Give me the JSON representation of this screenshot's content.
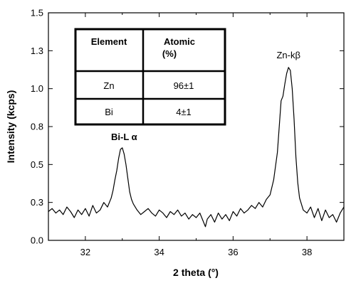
{
  "chart_data": {
    "type": "line",
    "xlabel": "2 theta (°)",
    "ylabel": "Intensity (kcps)",
    "xlim": [
      31,
      39
    ],
    "ylim": [
      0.0,
      1.5
    ],
    "x_ticks": [
      "32",
      "34",
      "36",
      "38"
    ],
    "y_ticks": [
      "0.0",
      "0.3",
      "0.5",
      "0.8",
      "1.0",
      "1.3",
      "1.5"
    ],
    "grid": false,
    "series": [
      {
        "color": "#000000",
        "x": [
          31.0,
          31.1,
          31.2,
          31.3,
          31.4,
          31.5,
          31.6,
          31.7,
          31.8,
          31.9,
          32.0,
          32.1,
          32.2,
          32.3,
          32.4,
          32.5,
          32.6,
          32.7,
          32.75,
          32.8,
          32.85,
          32.9,
          32.95,
          33.0,
          33.05,
          33.1,
          33.15,
          33.2,
          33.25,
          33.3,
          33.4,
          33.5,
          33.6,
          33.7,
          33.8,
          33.9,
          34.0,
          34.1,
          34.2,
          34.3,
          34.4,
          34.5,
          34.6,
          34.7,
          34.8,
          34.9,
          35.0,
          35.1,
          35.2,
          35.25,
          35.3,
          35.4,
          35.5,
          35.6,
          35.7,
          35.8,
          35.9,
          36.0,
          36.1,
          36.2,
          36.3,
          36.4,
          36.5,
          36.6,
          36.7,
          36.8,
          36.9,
          37.0,
          37.1,
          37.2,
          37.25,
          37.3,
          37.35,
          37.4,
          37.45,
          37.5,
          37.55,
          37.6,
          37.65,
          37.7,
          37.75,
          37.8,
          37.9,
          38.0,
          38.1,
          38.2,
          38.3,
          38.4,
          38.5,
          38.6,
          38.7,
          38.8,
          38.9,
          39.0
        ],
        "y": [
          0.19,
          0.21,
          0.18,
          0.2,
          0.17,
          0.22,
          0.19,
          0.15,
          0.2,
          0.17,
          0.21,
          0.16,
          0.23,
          0.18,
          0.2,
          0.25,
          0.22,
          0.28,
          0.33,
          0.4,
          0.46,
          0.54,
          0.6,
          0.61,
          0.57,
          0.5,
          0.41,
          0.32,
          0.27,
          0.24,
          0.2,
          0.17,
          0.19,
          0.21,
          0.18,
          0.16,
          0.2,
          0.18,
          0.15,
          0.19,
          0.17,
          0.2,
          0.16,
          0.18,
          0.14,
          0.17,
          0.15,
          0.18,
          0.12,
          0.09,
          0.14,
          0.17,
          0.12,
          0.18,
          0.14,
          0.17,
          0.13,
          0.19,
          0.16,
          0.21,
          0.18,
          0.2,
          0.23,
          0.21,
          0.25,
          0.22,
          0.27,
          0.3,
          0.4,
          0.58,
          0.75,
          0.92,
          0.95,
          1.03,
          1.1,
          1.14,
          1.12,
          1.0,
          0.8,
          0.55,
          0.38,
          0.28,
          0.2,
          0.18,
          0.22,
          0.15,
          0.21,
          0.13,
          0.2,
          0.15,
          0.17,
          0.12,
          0.18,
          0.22
        ]
      }
    ],
    "annotations": [
      {
        "text": "Bi-L  α",
        "x": 33.05,
        "y": 0.66
      },
      {
        "text": "Zn-kβ",
        "x": 37.5,
        "y": 1.2
      }
    ],
    "inset_table": {
      "headers": [
        "Element",
        "Atomic",
        "(%)"
      ],
      "rows": [
        [
          "Zn",
          "96±1"
        ],
        [
          "Bi",
          "4±1"
        ]
      ]
    }
  }
}
